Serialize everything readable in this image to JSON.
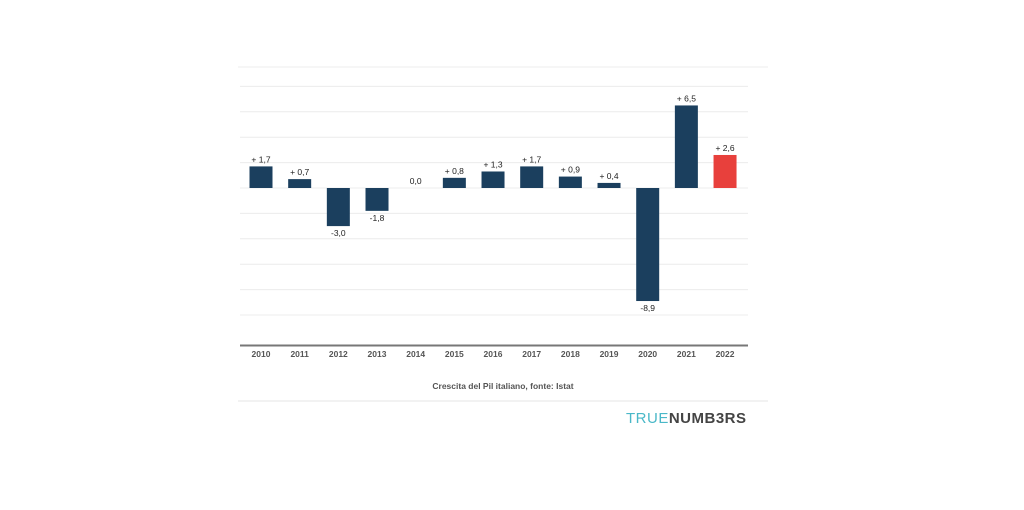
{
  "chart_data": {
    "type": "bar",
    "categories": [
      "2010",
      "2011",
      "2012",
      "2013",
      "2014",
      "2015",
      "2016",
      "2017",
      "2018",
      "2019",
      "2020",
      "2021",
      "2022"
    ],
    "values": [
      1.7,
      0.7,
      -3.0,
      -1.8,
      0.0,
      0.8,
      1.3,
      1.7,
      0.9,
      0.4,
      -8.9,
      6.5,
      2.6
    ],
    "data_labels": [
      "+ 1,7",
      "+ 0,7",
      "-3,0",
      "-1,8",
      "0,0",
      "+ 0,8",
      "+ 1,3",
      "+ 1,7",
      "+ 0,9",
      "+ 0,4",
      "-8,9",
      "+ 6,5",
      "+ 2,6"
    ],
    "title": "",
    "caption": "Crescita del Pil italiano, fonte: Istat",
    "xlabel": "",
    "ylabel": "",
    "ylim": [
      -12.4,
      8
    ],
    "grid": true,
    "grid_step": 2,
    "colors": {
      "default": "#1b3f5e",
      "highlight": "#e8403c"
    },
    "highlight_category": "2022"
  },
  "brand": {
    "part1": "TRUE",
    "part2": "NUMB3RS"
  }
}
